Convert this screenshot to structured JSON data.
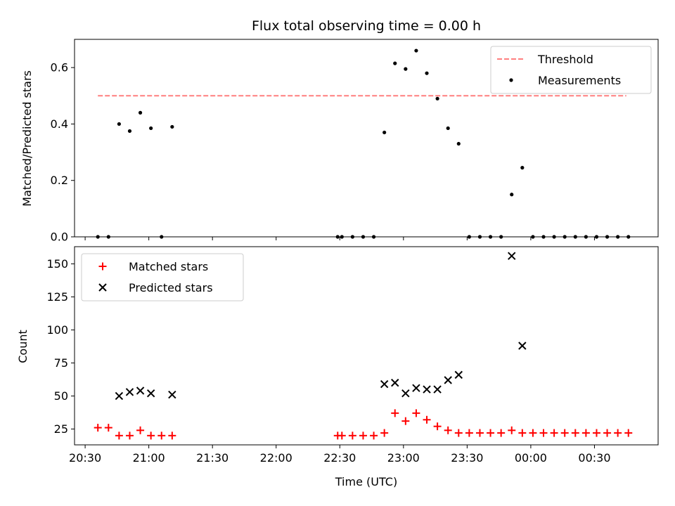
{
  "chart_data": {
    "type": "scatter",
    "title": "Flux total observing time = 0.00 h",
    "xlabel": "Time (UTC)",
    "x_tick_labels": [
      "20:30",
      "21:00",
      "21:30",
      "22:00",
      "22:30",
      "23:00",
      "23:30",
      "00:00",
      "00:30"
    ],
    "x_ticks_minutes": [
      1230,
      1260,
      1290,
      1320,
      1350,
      1380,
      1410,
      1440,
      1470
    ],
    "xlim_minutes": [
      1225,
      1500
    ],
    "panels": [
      {
        "ylabel": "Matched/Predicted stars",
        "ylim": [
          0,
          0.7
        ],
        "y_ticks": [
          0.0,
          0.2,
          0.4,
          0.6
        ],
        "y_tick_labels": [
          "0.0",
          "0.2",
          "0.4",
          "0.6"
        ],
        "legend_position": "upper right",
        "threshold": {
          "name": "Threshold",
          "value": 0.5,
          "x_range": [
            1236,
            1485
          ],
          "color": "#ff7f7f"
        },
        "series": [
          {
            "name": "Measurements",
            "marker": "dot",
            "color": "#000000",
            "x": [
              1236,
              1241,
              1246,
              1251,
              1256,
              1261,
              1266,
              1271,
              1349,
              1351,
              1356,
              1361,
              1366,
              1371,
              1376,
              1381,
              1386,
              1391,
              1396,
              1401,
              1406,
              1411,
              1416,
              1421,
              1426,
              1431,
              1436,
              1441,
              1446,
              1451,
              1456,
              1461,
              1466,
              1471,
              1476,
              1481,
              1486
            ],
            "y": [
              0.0,
              0.0,
              0.4,
              0.375,
              0.44,
              0.385,
              0.0,
              0.39,
              0.0,
              0.0,
              0.0,
              0.0,
              0.0,
              0.37,
              0.615,
              0.595,
              0.66,
              0.58,
              0.49,
              0.385,
              0.33,
              0.0,
              0.0,
              0.0,
              0.0,
              0.15,
              0.245,
              0.0,
              0.0,
              0.0,
              0.0,
              0.0,
              0.0,
              0.0,
              0.0,
              0.0,
              0.0
            ]
          }
        ]
      },
      {
        "ylabel": "Count",
        "ylim": [
          13,
          163
        ],
        "y_ticks": [
          25,
          50,
          75,
          100,
          125,
          150
        ],
        "y_tick_labels": [
          "25",
          "50",
          "75",
          "100",
          "125",
          "150"
        ],
        "legend_position": "upper left",
        "series": [
          {
            "name": "Matched stars",
            "marker": "plus",
            "color": "#ff0000",
            "x": [
              1236,
              1241,
              1246,
              1251,
              1256,
              1261,
              1266,
              1271,
              1349,
              1351,
              1356,
              1361,
              1366,
              1371,
              1376,
              1381,
              1386,
              1391,
              1396,
              1401,
              1406,
              1411,
              1416,
              1421,
              1426,
              1431,
              1436,
              1441,
              1446,
              1451,
              1456,
              1461,
              1466,
              1471,
              1476,
              1481,
              1486
            ],
            "y": [
              26,
              26,
              20,
              20,
              24,
              20,
              20,
              20,
              20,
              20,
              20,
              20,
              20,
              22,
              37,
              31,
              37,
              32,
              27,
              24,
              22,
              22,
              22,
              22,
              22,
              24,
              22,
              22,
              22,
              22,
              22,
              22,
              22,
              22,
              22,
              22,
              22
            ]
          },
          {
            "name": "Predicted stars",
            "marker": "x",
            "color": "#000000",
            "x": [
              1246,
              1251,
              1256,
              1261,
              1271,
              1371,
              1376,
              1381,
              1386,
              1391,
              1396,
              1401,
              1406,
              1431,
              1436
            ],
            "y": [
              50,
              53,
              54,
              52,
              51,
              59,
              60,
              52,
              56,
              55,
              55,
              62,
              66,
              156,
              88
            ]
          }
        ]
      }
    ]
  }
}
